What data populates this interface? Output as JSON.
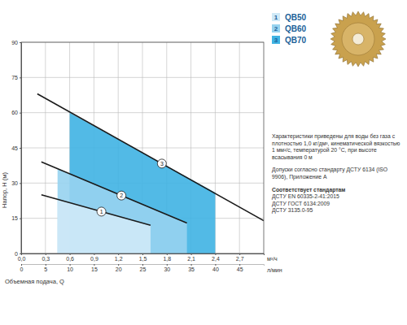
{
  "chart_data": {
    "type": "line",
    "x_label": "Объемная подача, Q",
    "y_label": "Напор, Н (м)",
    "x_unit": "м³/ч",
    "x2_unit": "л/мин",
    "xlim": [
      0,
      3
    ],
    "xticks": [
      {
        "value": 0,
        "label": "0,0"
      },
      {
        "value": 0.3,
        "label": "0,3"
      },
      {
        "value": 0.6,
        "label": "0,6"
      },
      {
        "value": 0.9,
        "label": "0,9"
      },
      {
        "value": 1.2,
        "label": "1,2"
      },
      {
        "value": 1.5,
        "label": "1,5"
      },
      {
        "value": 1.8,
        "label": "1,8"
      },
      {
        "value": 2.1,
        "label": "2,1"
      },
      {
        "value": 2.4,
        "label": "2,4"
      },
      {
        "value": 2.7,
        "label": "2,7"
      }
    ],
    "x2lim": [
      0,
      50
    ],
    "x2ticks": [
      0,
      5,
      10,
      15,
      20,
      25,
      30,
      35,
      40,
      45
    ],
    "ylim": [
      0,
      90
    ],
    "yticks": [
      0,
      15,
      30,
      45,
      60,
      75,
      90
    ],
    "grid": true,
    "legend": "top-right",
    "series": [
      {
        "name": "QB50",
        "label": "1",
        "color": "#cfe9f7",
        "x": [
          0.25,
          1.6
        ],
        "values": [
          25,
          12
        ],
        "area_x": [
          0.45,
          1.6
        ],
        "area_values": [
          23,
          12
        ]
      },
      {
        "name": "QB60",
        "label": "2",
        "color": "#97d3ef",
        "x": [
          0.25,
          2.05
        ],
        "values": [
          39,
          13
        ],
        "area_x": [
          0.45,
          2.05
        ],
        "area_values": [
          36,
          13
        ]
      },
      {
        "name": "QB70",
        "label": "3",
        "color": "#3fb3e3",
        "x": [
          0.2,
          3.0
        ],
        "values": [
          68,
          14
        ],
        "area_x": [
          0.6,
          2.4
        ],
        "area_values": [
          60,
          26
        ]
      }
    ],
    "annotations": [
      "Характеристики приведены для воды без газа с плотностью 1,0 кг/дм³, кинематической вязкостью 1 мм²/с, температурой 20 °С, при высоте всасывания 0 м",
      "Допуски согласно стандарту ДСТУ 6134 (ISO 9906), Приложение А"
    ],
    "standards_title": "Соответствует стандартам",
    "standards": [
      "ДСТУ EN 60335-2-41:2015",
      "ДСТУ ГОСТ 6134:2009",
      "ДСТУ 3135.0-95"
    ]
  }
}
